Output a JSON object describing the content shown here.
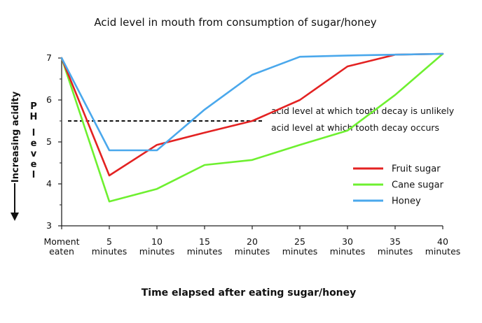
{
  "chart_data": {
    "type": "line",
    "title": "Acid level in mouth from consumption of sugar/honey",
    "xlabel": "Time elapsed after eating sugar/honey",
    "ylabel": "Increasing acidity",
    "ylabel_secondary": "PH level",
    "x": [
      0,
      5,
      10,
      15,
      20,
      25,
      30,
      35,
      40
    ],
    "categories": [
      [
        "Moment",
        "eaten"
      ],
      [
        "5",
        "minutes"
      ],
      [
        "10",
        "minutes"
      ],
      [
        "15",
        "minutes"
      ],
      [
        "20",
        "minutes"
      ],
      [
        "25",
        "minutes"
      ],
      [
        "30",
        "minutes"
      ],
      [
        "35",
        "minutes"
      ],
      [
        "40",
        "minutes"
      ]
    ],
    "y_ticks": [
      3,
      4,
      5,
      6,
      7
    ],
    "ylim": [
      3,
      7
    ],
    "xlim": [
      0,
      40
    ],
    "reference_line": {
      "value": 5.5,
      "label_above": "acid level at which tooth decay is unlikely",
      "label_below": "acid level at which tooth decay occurs"
    },
    "series": [
      {
        "name": "Fruit sugar",
        "color": "#e32222",
        "values": [
          7.0,
          4.2,
          4.93,
          5.22,
          5.5,
          6.0,
          6.8,
          7.08,
          7.1
        ]
      },
      {
        "name": "Cane sugar",
        "color": "#6ef030",
        "values": [
          7.0,
          3.58,
          3.88,
          4.45,
          4.57,
          4.93,
          5.27,
          6.12,
          7.1
        ]
      },
      {
        "name": "Honey",
        "color": "#4aa8ec",
        "values": [
          7.0,
          4.8,
          4.8,
          5.77,
          6.6,
          7.03,
          7.06,
          7.08,
          7.1
        ]
      }
    ],
    "legend_position": "right",
    "grid": false
  }
}
